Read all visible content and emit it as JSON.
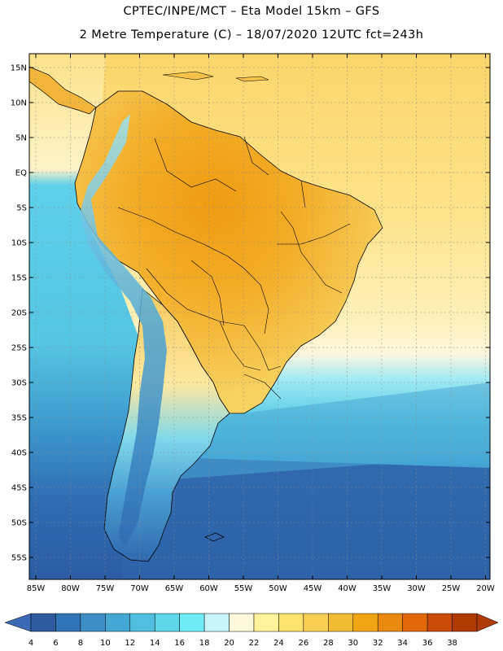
{
  "header": {
    "title_line1": "CPTEC/INPE/MCT –  Eta Model 15km – GFS",
    "title_line2": "2 Metre Temperature (C) – 18/07/2020 12UTC fct=243h"
  },
  "map": {
    "lat_labels": [
      "15N",
      "10N",
      "5N",
      "EQ",
      "5S",
      "10S",
      "15S",
      "20S",
      "25S",
      "30S",
      "35S",
      "40S",
      "45S",
      "50S",
      "55S"
    ],
    "lon_labels": [
      "85W",
      "80W",
      "75W",
      "70W",
      "65W",
      "60W",
      "55W",
      "50W",
      "45W",
      "40W",
      "35W",
      "30W",
      "25W",
      "20W"
    ],
    "colors": {
      "ocean_warm": "#fce28a",
      "ocean_mid": "#fef6c8",
      "land_hot": "#f2a418",
      "land_warm": "#f6c752",
      "cold_ocean": "#58c8e6",
      "deep_cold": "#2e63a8",
      "gridline": "#8a8a8a"
    }
  },
  "colorbar": {
    "labels": [
      "4",
      "6",
      "8",
      "10",
      "12",
      "14",
      "16",
      "18",
      "20",
      "22",
      "24",
      "26",
      "28",
      "30",
      "32",
      "34",
      "36",
      "38"
    ],
    "colors": [
      "#2e5aa0",
      "#2e74b6",
      "#3d8fc6",
      "#45a8d4",
      "#4fbedf",
      "#5fd6ea",
      "#70ecf6",
      "#c8f4fa",
      "#fff9dc",
      "#fff29a",
      "#fde46e",
      "#f8cf52",
      "#f2bb34",
      "#efa514",
      "#ea8a10",
      "#e2680a",
      "#c94b06",
      "#b03a04"
    ],
    "left_arrow_color": "#3a69b5",
    "right_arrow_color": "#ae3b06"
  }
}
